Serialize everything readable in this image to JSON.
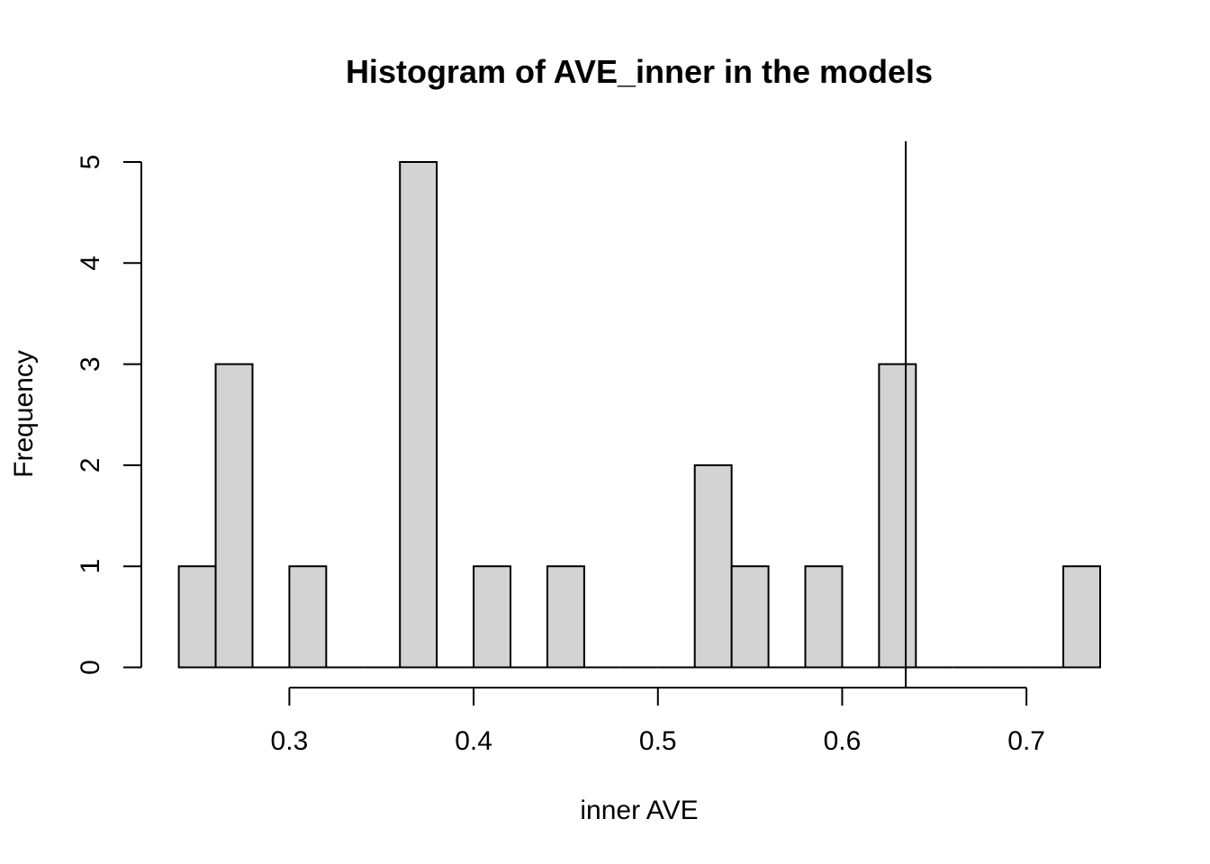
{
  "chart_data": {
    "type": "bar",
    "title": "Histogram of AVE_inner in the models",
    "xlabel": "inner AVE",
    "ylabel": "Frequency",
    "bin_width": 0.02,
    "bins": [
      {
        "start": 0.24,
        "end": 0.26,
        "count": 1
      },
      {
        "start": 0.26,
        "end": 0.28,
        "count": 3
      },
      {
        "start": 0.28,
        "end": 0.3,
        "count": 0
      },
      {
        "start": 0.3,
        "end": 0.32,
        "count": 1
      },
      {
        "start": 0.32,
        "end": 0.34,
        "count": 0
      },
      {
        "start": 0.34,
        "end": 0.36,
        "count": 0
      },
      {
        "start": 0.36,
        "end": 0.38,
        "count": 5
      },
      {
        "start": 0.38,
        "end": 0.4,
        "count": 0
      },
      {
        "start": 0.4,
        "end": 0.42,
        "count": 1
      },
      {
        "start": 0.42,
        "end": 0.44,
        "count": 0
      },
      {
        "start": 0.44,
        "end": 0.46,
        "count": 1
      },
      {
        "start": 0.46,
        "end": 0.48,
        "count": 0
      },
      {
        "start": 0.48,
        "end": 0.5,
        "count": 0
      },
      {
        "start": 0.5,
        "end": 0.52,
        "count": 0
      },
      {
        "start": 0.52,
        "end": 0.54,
        "count": 2
      },
      {
        "start": 0.54,
        "end": 0.56,
        "count": 1
      },
      {
        "start": 0.56,
        "end": 0.58,
        "count": 0
      },
      {
        "start": 0.58,
        "end": 0.6,
        "count": 1
      },
      {
        "start": 0.6,
        "end": 0.62,
        "count": 0
      },
      {
        "start": 0.62,
        "end": 0.64,
        "count": 3
      },
      {
        "start": 0.64,
        "end": 0.66,
        "count": 0
      },
      {
        "start": 0.66,
        "end": 0.68,
        "count": 0
      },
      {
        "start": 0.68,
        "end": 0.7,
        "count": 0
      },
      {
        "start": 0.7,
        "end": 0.72,
        "count": 0
      },
      {
        "start": 0.72,
        "end": 0.74,
        "count": 1
      }
    ],
    "xlim": [
      0.24,
      0.74
    ],
    "ylim": [
      0,
      5
    ],
    "x_ticks": [
      0.3,
      0.4,
      0.5,
      0.6,
      0.7
    ],
    "x_tick_labels": [
      "0.3",
      "0.4",
      "0.5",
      "0.6",
      "0.7"
    ],
    "y_ticks": [
      0,
      1,
      2,
      3,
      4,
      5
    ],
    "y_tick_labels": [
      "0",
      "1",
      "2",
      "3",
      "4",
      "5"
    ],
    "reference_line_x": 0.6345,
    "bar_fill": "#d3d3d3",
    "bar_stroke": "#000000",
    "grid": false,
    "legend": "none"
  }
}
